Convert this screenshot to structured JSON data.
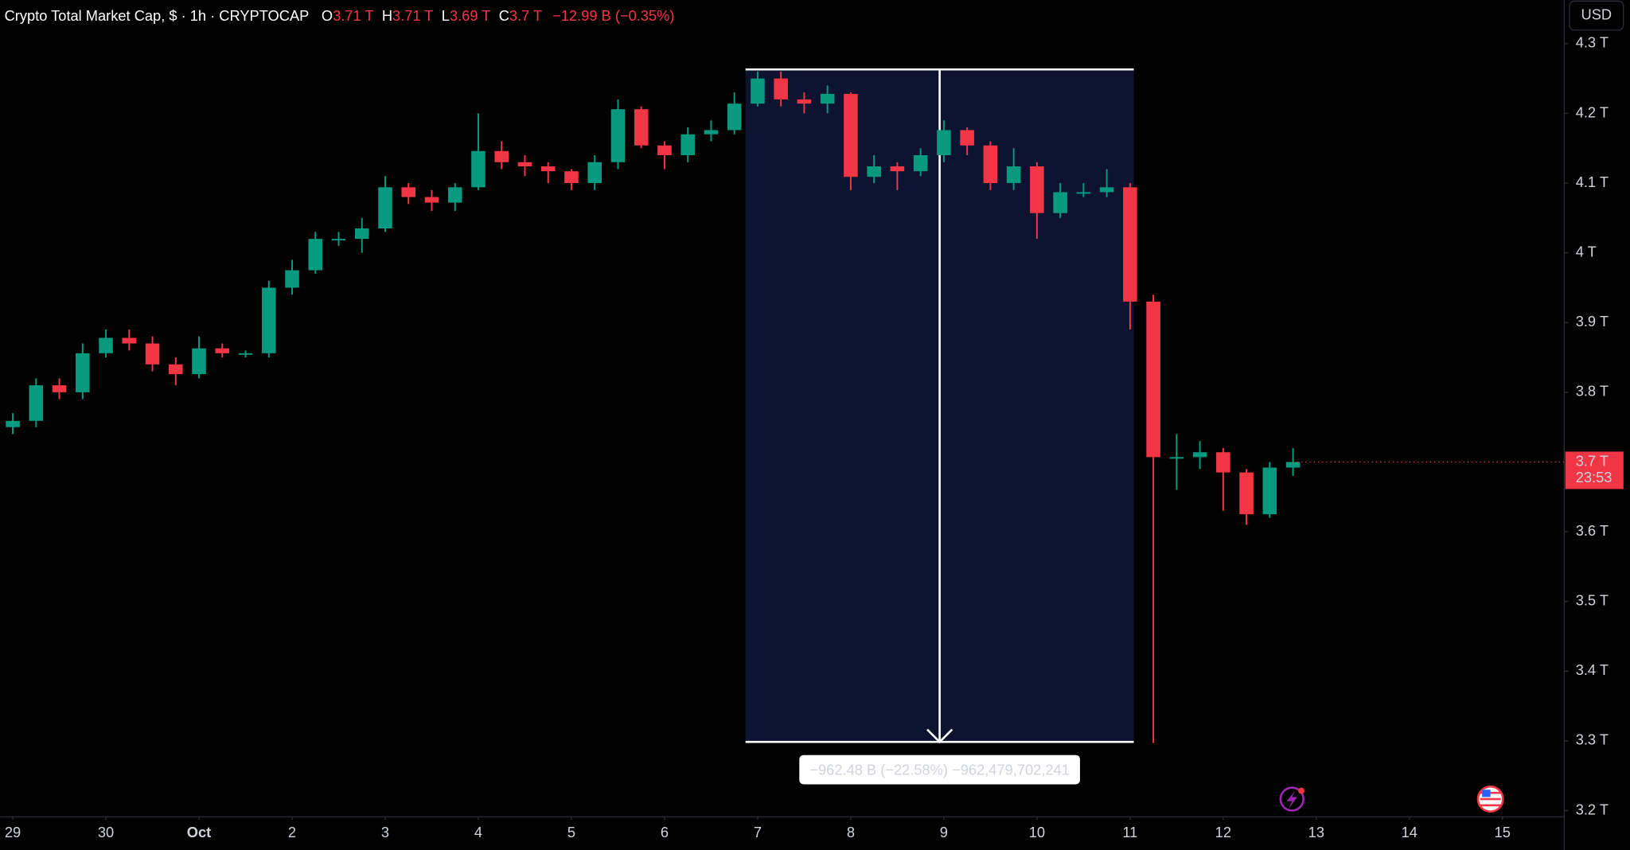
{
  "chart_data": {
    "type": "candlestick",
    "title": "Crypto Total Market Cap, $ · 1h · CRYPTOCAP",
    "ohlc_header": [
      {
        "key": "O",
        "value": "3.71 T"
      },
      {
        "key": "H",
        "value": "3.71 T"
      },
      {
        "key": "L",
        "value": "3.69 T"
      },
      {
        "key": "C",
        "value": "3.7 T"
      }
    ],
    "change": "−12.99 B (−0.35%)",
    "currency": "USD",
    "up_color": "#089981",
    "down_color": "#f23645",
    "x": [
      0,
      0.25,
      0.5,
      0.75,
      1,
      1.25,
      1.5,
      1.75,
      2,
      2.25,
      2.5,
      2.75,
      3,
      3.25,
      3.5,
      3.75,
      4,
      4.25,
      4.5,
      4.75,
      5,
      5.25,
      5.5,
      5.75,
      6,
      6.25,
      6.5,
      6.75,
      7,
      7.25,
      7.5,
      7.75,
      8,
      8.25,
      8.5,
      8.75,
      9,
      9.25,
      9.5,
      9.75,
      10,
      10.25,
      10.5,
      10.75,
      11,
      11.25,
      11.5,
      11.75,
      12,
      12.25,
      12.5,
      12.75,
      13,
      13.25,
      13.5,
      13.75
    ],
    "open": [
      3.75,
      3.759,
      3.81,
      3.8,
      3.856,
      3.878,
      3.87,
      3.84,
      3.826,
      3.863,
      3.856,
      3.856,
      3.95,
      3.975,
      4.02,
      4.02,
      4.035,
      4.094,
      4.08,
      4.072,
      4.094,
      4.146,
      4.13,
      4.124,
      4.117,
      4.1,
      4.13,
      4.206,
      4.154,
      4.14,
      4.17,
      4.176,
      4.214,
      4.25,
      4.22,
      4.214,
      4.228,
      4.109,
      4.124,
      4.117,
      4.14,
      4.176,
      4.154,
      4.1,
      4.124,
      4.057,
      4.087,
      4.087,
      4.094,
      3.93,
      3.707,
      3.707,
      3.714,
      3.685,
      3.625,
      3.692
    ],
    "high": [
      3.77,
      3.82,
      3.82,
      3.87,
      3.89,
      3.89,
      3.88,
      3.85,
      3.88,
      3.87,
      3.86,
      3.96,
      3.99,
      4.03,
      4.03,
      4.05,
      4.11,
      4.1,
      4.09,
      4.1,
      4.2,
      4.16,
      4.14,
      4.13,
      4.12,
      4.14,
      4.22,
      4.21,
      4.16,
      4.18,
      4.19,
      4.23,
      4.26,
      4.26,
      4.23,
      4.24,
      4.23,
      4.14,
      4.13,
      4.15,
      4.19,
      4.18,
      4.16,
      4.15,
      4.13,
      4.1,
      4.1,
      4.12,
      4.1,
      3.94,
      3.74,
      3.73,
      3.72,
      3.69,
      3.7,
      3.72
    ],
    "low": [
      3.74,
      3.75,
      3.79,
      3.79,
      3.85,
      3.86,
      3.83,
      3.81,
      3.82,
      3.85,
      3.85,
      3.85,
      3.94,
      3.97,
      4.01,
      4.0,
      4.03,
      4.07,
      4.06,
      4.06,
      4.09,
      4.12,
      4.11,
      4.1,
      4.09,
      4.09,
      4.12,
      4.15,
      4.12,
      4.13,
      4.16,
      4.17,
      4.21,
      4.21,
      4.2,
      4.2,
      4.09,
      4.1,
      4.09,
      4.11,
      4.13,
      4.14,
      4.09,
      4.09,
      4.02,
      4.05,
      4.08,
      4.08,
      3.89,
      3.297,
      3.66,
      3.69,
      3.63,
      3.61,
      3.62,
      3.68
    ],
    "close": [
      3.759,
      3.81,
      3.8,
      3.856,
      3.878,
      3.87,
      3.84,
      3.826,
      3.863,
      3.856,
      3.856,
      3.95,
      3.975,
      4.02,
      4.02,
      4.035,
      4.094,
      4.08,
      4.072,
      4.094,
      4.146,
      4.13,
      4.124,
      4.117,
      4.1,
      4.13,
      4.206,
      4.154,
      4.14,
      4.17,
      4.176,
      4.214,
      4.25,
      4.22,
      4.214,
      4.228,
      4.109,
      4.124,
      4.117,
      4.14,
      4.176,
      4.154,
      4.1,
      4.124,
      4.057,
      4.087,
      4.087,
      4.094,
      3.93,
      3.707,
      3.707,
      3.714,
      3.685,
      3.625,
      3.692,
      3.7
    ],
    "xlim": [
      -0.134,
      16.663
    ],
    "ylim": [
      3.1912,
      4.3626
    ],
    "xticks": [
      {
        "value": 0,
        "label": "29"
      },
      {
        "value": 1,
        "label": "30"
      },
      {
        "value": 2,
        "label": "Oct"
      },
      {
        "value": 3,
        "label": "2"
      },
      {
        "value": 4,
        "label": "3"
      },
      {
        "value": 5,
        "label": "4"
      },
      {
        "value": 6,
        "label": "5"
      },
      {
        "value": 7,
        "label": "6"
      },
      {
        "value": 8,
        "label": "7"
      },
      {
        "value": 9,
        "label": "8"
      },
      {
        "value": 10,
        "label": "9"
      },
      {
        "value": 11,
        "label": "10"
      },
      {
        "value": 12,
        "label": "11"
      },
      {
        "value": 13,
        "label": "12"
      },
      {
        "value": 14,
        "label": "13"
      },
      {
        "value": 15,
        "label": "14"
      },
      {
        "value": 16,
        "label": "15"
      }
    ],
    "yticks": [
      {
        "value": 4.3,
        "label": "4.3 T"
      },
      {
        "value": 4.2,
        "label": "4.2 T"
      },
      {
        "value": 4.1,
        "label": "4.1 T"
      },
      {
        "value": 4.0,
        "label": "4 T"
      },
      {
        "value": 3.9,
        "label": "3.9 T"
      },
      {
        "value": 3.8,
        "label": "3.8 T"
      },
      {
        "value": 3.6,
        "label": "3.6 T"
      },
      {
        "value": 3.5,
        "label": "3.5 T"
      },
      {
        "value": 3.4,
        "label": "3.4 T"
      },
      {
        "value": 3.3,
        "label": "3.3 T"
      },
      {
        "value": 3.2,
        "label": "3.2 T"
      }
    ],
    "last_price": {
      "value": 3.7,
      "label": "3.7 T",
      "countdown": "23:53"
    },
    "measure": {
      "x": [
        7.87,
        12.04
      ],
      "y": [
        4.263,
        3.2985
      ],
      "label": "−962.48 B (−22.58%) −962,479,702,241"
    }
  }
}
